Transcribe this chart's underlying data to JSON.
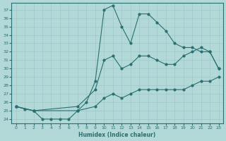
{
  "xlabel": "Humidex (Indice chaleur)",
  "background_color": "#b2d8d8",
  "grid_color": "#c8e8e8",
  "line_color": "#2a7070",
  "xlim": [
    -0.5,
    23.5
  ],
  "ylim": [
    23.5,
    37.8
  ],
  "xticks": [
    0,
    1,
    2,
    3,
    4,
    5,
    6,
    7,
    8,
    9,
    10,
    11,
    12,
    13,
    14,
    15,
    16,
    17,
    18,
    19,
    20,
    21,
    22,
    23
  ],
  "yticks": [
    24,
    25,
    26,
    27,
    28,
    29,
    30,
    31,
    32,
    33,
    34,
    35,
    36,
    37
  ],
  "line_top_x": [
    0,
    1,
    2,
    3,
    4,
    5,
    6,
    7,
    8,
    9,
    10,
    11,
    12,
    13,
    14,
    15,
    16,
    17,
    18,
    19,
    20,
    21,
    22,
    23
  ],
  "line_top_y": [
    25.5,
    25.2,
    25.0,
    24.0,
    24.0,
    24.0,
    24.0,
    25.0,
    26.0,
    28.5,
    37.0,
    37.5,
    35.0,
    33.0,
    36.5,
    36.5,
    35.5,
    34.5,
    33.0,
    32.5,
    32.5,
    32.0,
    32.0,
    30.0
  ],
  "line_mid_x": [
    0,
    2,
    7,
    9,
    10,
    11,
    12,
    13,
    14,
    15,
    16,
    17,
    18,
    19,
    20,
    21,
    22,
    23
  ],
  "line_mid_y": [
    25.5,
    25.0,
    25.5,
    27.5,
    31.0,
    31.5,
    30.0,
    30.5,
    31.5,
    31.5,
    31.0,
    30.5,
    30.5,
    31.5,
    32.0,
    32.5,
    32.0,
    30.0
  ],
  "line_bot_x": [
    0,
    2,
    7,
    9,
    10,
    11,
    12,
    13,
    14,
    15,
    16,
    17,
    18,
    19,
    20,
    21,
    22,
    23
  ],
  "line_bot_y": [
    25.5,
    25.0,
    25.0,
    25.5,
    26.5,
    27.0,
    26.5,
    27.0,
    27.5,
    27.5,
    27.5,
    27.5,
    27.5,
    27.5,
    28.0,
    28.5,
    28.5,
    29.0
  ]
}
